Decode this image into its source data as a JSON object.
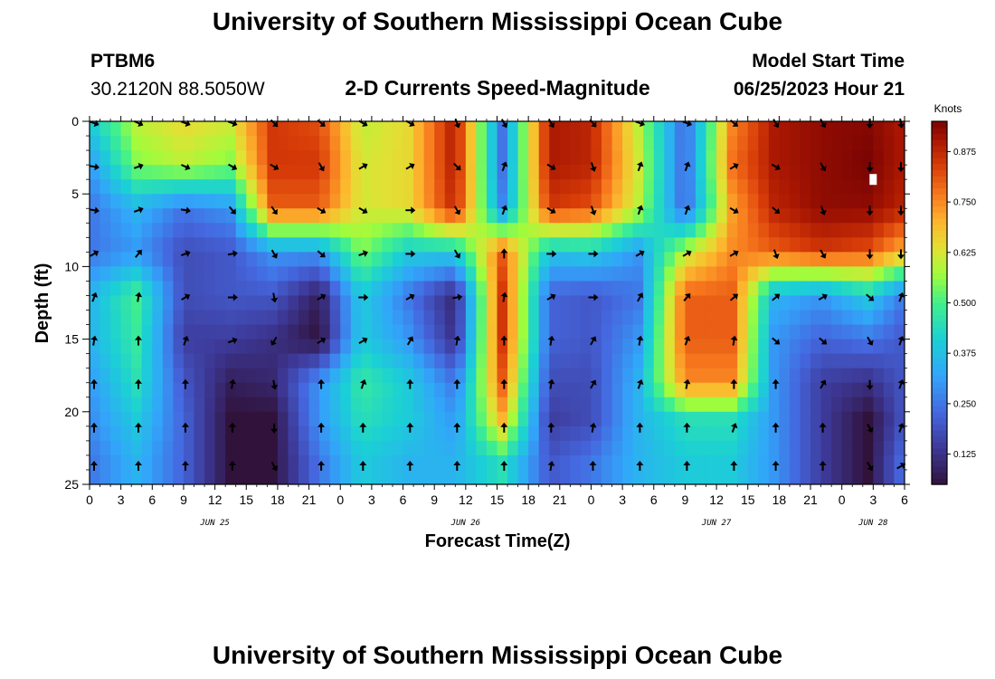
{
  "header": {
    "title": "University of Southern Mississippi Ocean Cube",
    "station_id": "PTBM6",
    "coordinates": "30.2120N  88.5050W",
    "plot_title": "2-D Currents Speed-Magnitude",
    "model_start_label": "Model Start Time",
    "model_start_value": "06/25/2023 Hour 21"
  },
  "footer": {
    "title": "University of Southern Mississippi Ocean Cube"
  },
  "colors": {
    "arrow": "#000000",
    "frame": "#000000"
  },
  "chart_data": {
    "type": "heatmap",
    "title": "2-D Currents Speed-Magnitude",
    "xlabel": "Forecast Time(Z)",
    "ylabel": "Depth (ft)",
    "x_range": [
      0,
      78
    ],
    "y_range": [
      0,
      25
    ],
    "y_inverted": true,
    "x_ticks": [
      0,
      3,
      6,
      9,
      12,
      15,
      18,
      21,
      24,
      27,
      30,
      33,
      36,
      39,
      42,
      45,
      48,
      51,
      54,
      57,
      60,
      63,
      66,
      69,
      72,
      75,
      78
    ],
    "x_tick_labels": [
      "0",
      "3",
      "6",
      "9",
      "12",
      "15",
      "18",
      "21",
      "0",
      "3",
      "6",
      "9",
      "12",
      "15",
      "18",
      "21",
      "0",
      "3",
      "6",
      "9",
      "12",
      "15",
      "18",
      "21",
      "0",
      "3",
      "6"
    ],
    "y_ticks": [
      0,
      5,
      10,
      15,
      20,
      25
    ],
    "y_tick_labels": [
      "0",
      "5",
      "10",
      "15",
      "20",
      "25"
    ],
    "date_labels": [
      {
        "x": 12,
        "label": "JUN 25"
      },
      {
        "x": 36,
        "label": "JUN 26"
      },
      {
        "x": 60,
        "label": "JUN 27"
      },
      {
        "x": 75,
        "label": "JUN 28"
      }
    ],
    "colorbar": {
      "label": "Knots",
      "range": [
        0.05,
        0.95
      ],
      "ticks": [
        0.125,
        0.25,
        0.375,
        0.5,
        0.625,
        0.75,
        0.875
      ],
      "tick_labels": [
        "0.125",
        "0.250",
        "0.375",
        "0.500",
        "0.625",
        "0.750",
        "0.875"
      ]
    },
    "time_columns": [
      0,
      4.5,
      9,
      13.5,
      17.5,
      22,
      26,
      30.5,
      35,
      39.5,
      44,
      48,
      52.5,
      57,
      61.5,
      65.5,
      70,
      74.5,
      78
    ],
    "depth_rows": [
      0,
      3,
      6,
      9,
      12,
      15,
      18,
      20.5,
      23.5,
      25
    ],
    "speed_grid": [
      [
        0.4,
        0.6,
        0.65,
        0.62,
        0.85,
        0.82,
        0.6,
        0.65,
        0.9,
        0.25,
        0.9,
        0.88,
        0.6,
        0.22,
        0.75,
        0.9,
        0.93,
        0.94,
        0.9
      ],
      [
        0.3,
        0.55,
        0.6,
        0.55,
        0.85,
        0.85,
        0.62,
        0.65,
        0.9,
        0.25,
        0.9,
        0.88,
        0.62,
        0.22,
        0.78,
        0.9,
        0.93,
        0.95,
        0.9
      ],
      [
        0.25,
        0.35,
        0.25,
        0.3,
        0.8,
        0.8,
        0.62,
        0.65,
        0.88,
        0.28,
        0.85,
        0.82,
        0.6,
        0.22,
        0.72,
        0.88,
        0.93,
        0.93,
        0.88
      ],
      [
        0.25,
        0.3,
        0.18,
        0.2,
        0.3,
        0.3,
        0.55,
        0.4,
        0.4,
        0.8,
        0.38,
        0.4,
        0.3,
        0.6,
        0.75,
        0.8,
        0.85,
        0.82,
        0.7
      ],
      [
        0.35,
        0.5,
        0.18,
        0.2,
        0.2,
        0.08,
        0.4,
        0.25,
        0.1,
        0.85,
        0.22,
        0.2,
        0.25,
        0.8,
        0.8,
        0.35,
        0.3,
        0.4,
        0.25
      ],
      [
        0.35,
        0.48,
        0.15,
        0.15,
        0.12,
        0.05,
        0.4,
        0.3,
        0.12,
        0.85,
        0.22,
        0.2,
        0.3,
        0.8,
        0.8,
        0.3,
        0.22,
        0.25,
        0.2
      ],
      [
        0.3,
        0.45,
        0.2,
        0.08,
        0.1,
        0.3,
        0.48,
        0.4,
        0.25,
        0.8,
        0.18,
        0.18,
        0.35,
        0.75,
        0.75,
        0.3,
        0.15,
        0.12,
        0.2
      ],
      [
        0.28,
        0.4,
        0.22,
        0.05,
        0.05,
        0.3,
        0.45,
        0.4,
        0.3,
        0.7,
        0.15,
        0.18,
        0.35,
        0.45,
        0.45,
        0.3,
        0.15,
        0.05,
        0.2
      ],
      [
        0.25,
        0.35,
        0.22,
        0.05,
        0.05,
        0.25,
        0.4,
        0.35,
        0.35,
        0.45,
        0.2,
        0.25,
        0.35,
        0.4,
        0.4,
        0.3,
        0.15,
        0.05,
        0.25
      ],
      [
        0.25,
        0.35,
        0.22,
        0.05,
        0.05,
        0.25,
        0.4,
        0.35,
        0.35,
        0.45,
        0.2,
        0.25,
        0.35,
        0.4,
        0.4,
        0.3,
        0.15,
        0.05,
        0.25
      ]
    ],
    "vector_times": [
      0,
      4.5,
      9,
      13.5,
      17.5,
      22,
      26,
      30.5,
      35,
      39.5,
      44,
      48,
      52.5,
      57,
      61.5,
      65.5,
      70,
      74.5,
      78
    ],
    "vector_depths": [
      0,
      3,
      6,
      9,
      12,
      15,
      18,
      21,
      24
    ],
    "vector_directions_deg": [
      [
        110,
        115,
        110,
        110,
        135,
        130,
        120,
        120,
        160,
        150,
        150,
        140,
        110,
        110,
        130,
        150,
        150,
        180,
        170
      ],
      [
        100,
        70,
        115,
        120,
        120,
        150,
        60,
        60,
        135,
        20,
        120,
        160,
        20,
        20,
        60,
        120,
        150,
        180,
        180
      ],
      [
        100,
        70,
        100,
        140,
        145,
        120,
        120,
        90,
        150,
        20,
        120,
        160,
        20,
        20,
        120,
        130,
        160,
        180,
        180
      ],
      [
        60,
        40,
        70,
        80,
        150,
        130,
        70,
        90,
        150,
        0,
        90,
        90,
        60,
        60,
        60,
        160,
        150,
        180,
        180
      ],
      [
        20,
        10,
        60,
        90,
        170,
        60,
        90,
        60,
        80,
        10,
        60,
        90,
        30,
        40,
        50,
        50,
        60,
        130,
        20
      ],
      [
        10,
        0,
        20,
        70,
        210,
        60,
        60,
        30,
        10,
        0,
        10,
        30,
        10,
        20,
        10,
        130,
        130,
        150,
        20
      ],
      [
        0,
        0,
        0,
        10,
        170,
        0,
        20,
        0,
        0,
        0,
        10,
        30,
        20,
        10,
        0,
        0,
        30,
        180,
        20
      ],
      [
        0,
        0,
        0,
        0,
        180,
        0,
        0,
        0,
        0,
        0,
        0,
        10,
        0,
        0,
        20,
        0,
        0,
        150,
        20
      ],
      [
        0,
        0,
        0,
        0,
        150,
        0,
        0,
        0,
        0,
        0,
        10,
        0,
        0,
        0,
        0,
        0,
        0,
        150,
        60
      ]
    ],
    "marker": {
      "time": 75,
      "depth": 4
    }
  }
}
